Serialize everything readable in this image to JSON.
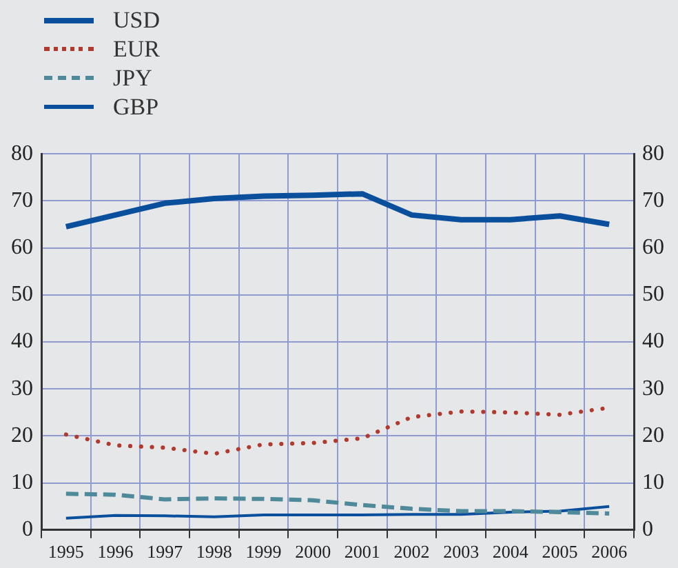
{
  "chart_data": {
    "type": "line",
    "categories": [
      "1995",
      "1996",
      "1997",
      "1998",
      "1999",
      "2000",
      "2001",
      "2002",
      "2003",
      "2004",
      "2005",
      "2006"
    ],
    "series": [
      {
        "name": "USD",
        "color": "#0a4f9c",
        "line_style": "solid",
        "values": [
          64.5,
          67,
          69.5,
          70.5,
          71,
          71.2,
          71.5,
          67,
          66,
          66,
          66.8,
          65
        ]
      },
      {
        "name": "EUR",
        "color": "#b03a2e",
        "line_style": "dotted",
        "values": [
          20.3,
          18,
          17.5,
          16.2,
          18.2,
          18.5,
          19.5,
          24,
          25.2,
          25,
          24.5,
          26
        ]
      },
      {
        "name": "JPY",
        "color": "#4f8a9a",
        "line_style": "dashed",
        "values": [
          7.7,
          7.5,
          6.5,
          6.7,
          6.6,
          6.3,
          5.3,
          4.5,
          4,
          4,
          3.8,
          3.5
        ]
      },
      {
        "name": "GBP",
        "color": "#0a4f9c",
        "line_style": "solid",
        "values": [
          2.5,
          3.1,
          3,
          2.8,
          3.2,
          3.2,
          3.2,
          3.3,
          3.3,
          3.8,
          4,
          5
        ]
      }
    ],
    "ylim": [
      0,
      80
    ],
    "yticks": [
      0,
      10,
      20,
      30,
      40,
      50,
      60,
      70,
      80
    ],
    "y2lim": [
      0,
      80
    ],
    "y2ticks": [
      0,
      10,
      20,
      30,
      40,
      50,
      60,
      70,
      80
    ],
    "grid": true,
    "legend": "top left",
    "marker": "none"
  }
}
